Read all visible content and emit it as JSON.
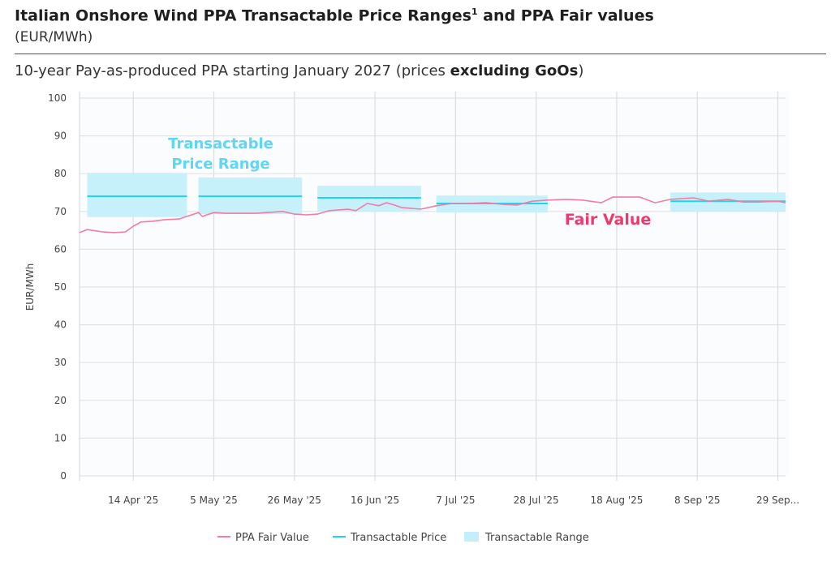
{
  "header": {
    "title": "Italian Onshore Wind PPA Transactable Price Ranges",
    "title_sup": "1",
    "title_suffix": " and PPA Fair values",
    "unit": "(EUR/MWh)",
    "subtitle_prefix": "10-year Pay-as-produced PPA starting January 2027 (prices ",
    "subtitle_bold": "excluding GoOs",
    "subtitle_suffix": ")"
  },
  "chart_data": {
    "type": "line",
    "ylabel": "EUR/MWh",
    "ylim": [
      0,
      100
    ],
    "yticks": [
      0,
      10,
      20,
      30,
      40,
      50,
      60,
      70,
      80,
      90,
      100
    ],
    "xlim": [
      "2025-03-31",
      "2025-10-01"
    ],
    "xticks": [
      {
        "date": "2025-04-14",
        "label": "14 Apr '25"
      },
      {
        "date": "2025-05-05",
        "label": "5 May '25"
      },
      {
        "date": "2025-05-26",
        "label": "26 May '25"
      },
      {
        "date": "2025-06-16",
        "label": "16 Jun '25"
      },
      {
        "date": "2025-07-07",
        "label": "7 Jul '25"
      },
      {
        "date": "2025-07-28",
        "label": "28 Jul '25"
      },
      {
        "date": "2025-08-18",
        "label": "18 Aug '25"
      },
      {
        "date": "2025-09-08",
        "label": "8 Sep '25"
      },
      {
        "date": "2025-09-29",
        "label": "29 Sep..."
      }
    ],
    "grid": true,
    "legend_position": "bottom",
    "colors": {
      "fair_value": "#f27ca4",
      "price": "#22d3ee",
      "range": "#c3effa",
      "ann_range": "#5fd6f2",
      "ann_fair": "#f0386b"
    },
    "annotations": {
      "range_line1": "Transactable",
      "range_line2": "Price Range",
      "fair": "Fair Value"
    },
    "series": [
      {
        "name": "PPA Fair Value",
        "points": [
          [
            "2025-03-31",
            64.4
          ],
          [
            "2025-04-02",
            65.2
          ],
          [
            "2025-04-06",
            64.6
          ],
          [
            "2025-04-09",
            64.4
          ],
          [
            "2025-04-12",
            64.6
          ],
          [
            "2025-04-14",
            66.1
          ],
          [
            "2025-04-16",
            67.2
          ],
          [
            "2025-04-19",
            67.4
          ],
          [
            "2025-04-22",
            67.8
          ],
          [
            "2025-04-26",
            68.0
          ],
          [
            "2025-04-28",
            68.7
          ],
          [
            "2025-05-01",
            69.7
          ],
          [
            "2025-05-02",
            68.7
          ],
          [
            "2025-05-05",
            69.7
          ],
          [
            "2025-05-08",
            69.5
          ],
          [
            "2025-05-12",
            69.5
          ],
          [
            "2025-05-16",
            69.5
          ],
          [
            "2025-05-23",
            70.0
          ],
          [
            "2025-05-26",
            69.3
          ],
          [
            "2025-05-29",
            69.1
          ],
          [
            "2025-06-01",
            69.3
          ],
          [
            "2025-06-04",
            70.2
          ],
          [
            "2025-06-09",
            70.6
          ],
          [
            "2025-06-11",
            70.2
          ],
          [
            "2025-06-14",
            72.1
          ],
          [
            "2025-06-17",
            71.5
          ],
          [
            "2025-06-19",
            72.3
          ],
          [
            "2025-06-21",
            71.7
          ],
          [
            "2025-06-23",
            71.0
          ],
          [
            "2025-06-28",
            70.6
          ],
          [
            "2025-07-02",
            71.5
          ],
          [
            "2025-07-06",
            72.1
          ],
          [
            "2025-07-10",
            72.1
          ],
          [
            "2025-07-15",
            72.3
          ],
          [
            "2025-07-19",
            71.9
          ],
          [
            "2025-07-23",
            71.7
          ],
          [
            "2025-07-27",
            72.7
          ],
          [
            "2025-07-31",
            73.0
          ],
          [
            "2025-08-05",
            73.2
          ],
          [
            "2025-08-09",
            73.0
          ],
          [
            "2025-08-14",
            72.3
          ],
          [
            "2025-08-17",
            73.8
          ],
          [
            "2025-08-24",
            73.8
          ],
          [
            "2025-08-28",
            72.3
          ],
          [
            "2025-09-01",
            73.2
          ],
          [
            "2025-09-07",
            73.6
          ],
          [
            "2025-09-11",
            72.7
          ],
          [
            "2025-09-16",
            73.2
          ],
          [
            "2025-09-20",
            72.5
          ],
          [
            "2025-09-24",
            72.5
          ],
          [
            "2025-09-29",
            72.7
          ],
          [
            "2025-10-01",
            72.3
          ]
        ]
      },
      {
        "name": "Transactable Price",
        "segments": [
          {
            "start": "2025-04-02",
            "end": "2025-04-28",
            "price": 74.0
          },
          {
            "start": "2025-05-01",
            "end": "2025-05-28",
            "price": 74.0
          },
          {
            "start": "2025-06-01",
            "end": "2025-06-28",
            "price": 73.6
          },
          {
            "start": "2025-07-02",
            "end": "2025-07-31",
            "price": 72.1
          },
          {
            "start": "2025-09-01",
            "end": "2025-10-01",
            "price": 72.7
          }
        ]
      },
      {
        "name": "Transactable Range",
        "segments": [
          {
            "start": "2025-04-02",
            "end": "2025-04-28",
            "low": 68.5,
            "high": 80.2
          },
          {
            "start": "2025-05-01",
            "end": "2025-05-28",
            "low": 69.3,
            "high": 79.0
          },
          {
            "start": "2025-06-01",
            "end": "2025-06-28",
            "low": 70.0,
            "high": 76.8
          },
          {
            "start": "2025-07-02",
            "end": "2025-07-31",
            "low": 69.7,
            "high": 74.2
          },
          {
            "start": "2025-09-01",
            "end": "2025-10-01",
            "low": 70.0,
            "high": 75.0
          }
        ]
      }
    ]
  }
}
